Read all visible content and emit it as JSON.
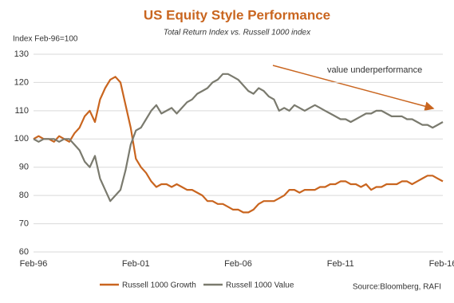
{
  "chart_data": {
    "type": "line",
    "title": "US Equity Style Performance",
    "subtitle": "Total Return Index vs. Russell 1000 index",
    "y_label": "Index Feb-96=100",
    "annotation": "value underperformance",
    "source": "Source:Bloomberg, RAFI",
    "categories": [
      "Feb-96",
      null,
      null,
      null,
      null,
      null,
      null,
      null,
      null,
      null,
      null,
      null,
      null,
      null,
      null,
      null,
      null,
      null,
      null,
      null,
      "Feb-01",
      null,
      null,
      null,
      null,
      null,
      null,
      null,
      null,
      null,
      null,
      null,
      null,
      null,
      null,
      null,
      null,
      null,
      null,
      null,
      "Feb-06",
      null,
      null,
      null,
      null,
      null,
      null,
      null,
      null,
      null,
      null,
      null,
      null,
      null,
      null,
      null,
      null,
      null,
      null,
      null,
      "Feb-11",
      null,
      null,
      null,
      null,
      null,
      null,
      null,
      null,
      null,
      null,
      null,
      null,
      null,
      null,
      null,
      null,
      null,
      null,
      null,
      "Feb-16"
    ],
    "series": [
      {
        "name": "Russell 1000 Growth",
        "color": "#c9651f",
        "values": [
          100,
          101,
          100,
          100,
          99,
          101,
          100,
          99,
          102,
          104,
          108,
          110,
          106,
          114,
          118,
          121,
          122,
          120,
          112,
          104,
          93,
          90,
          88,
          85,
          83,
          84,
          84,
          83,
          84,
          83,
          82,
          82,
          81,
          80,
          78,
          78,
          77,
          77,
          76,
          75,
          75,
          74,
          74,
          75,
          77,
          78,
          78,
          78,
          79,
          80,
          82,
          82,
          81,
          82,
          82,
          82,
          83,
          83,
          84,
          84,
          85,
          85,
          84,
          84,
          83,
          84,
          82,
          83,
          83,
          84,
          84,
          84,
          85,
          85,
          84,
          85,
          86,
          87,
          87,
          86,
          85
        ]
      },
      {
        "name": "Russell 1000 Value",
        "color": "#7a7a6e",
        "values": [
          100,
          99,
          100,
          100,
          100,
          99,
          100,
          100,
          98,
          96,
          92,
          90,
          94,
          86,
          82,
          78,
          80,
          82,
          89,
          98,
          103,
          104,
          107,
          110,
          112,
          109,
          110,
          111,
          109,
          111,
          113,
          114,
          116,
          117,
          118,
          120,
          121,
          123,
          123,
          122,
          121,
          119,
          117,
          116,
          118,
          117,
          115,
          114,
          110,
          111,
          110,
          112,
          111,
          110,
          111,
          112,
          111,
          110,
          109,
          108,
          107,
          107,
          106,
          107,
          108,
          109,
          109,
          110,
          110,
          109,
          108,
          108,
          108,
          107,
          107,
          106,
          105,
          105,
          104,
          105,
          106
        ]
      }
    ],
    "ylim": [
      60,
      130
    ],
    "yticks": [
      60,
      70,
      80,
      90,
      100,
      110,
      120,
      130
    ],
    "grid": true
  }
}
